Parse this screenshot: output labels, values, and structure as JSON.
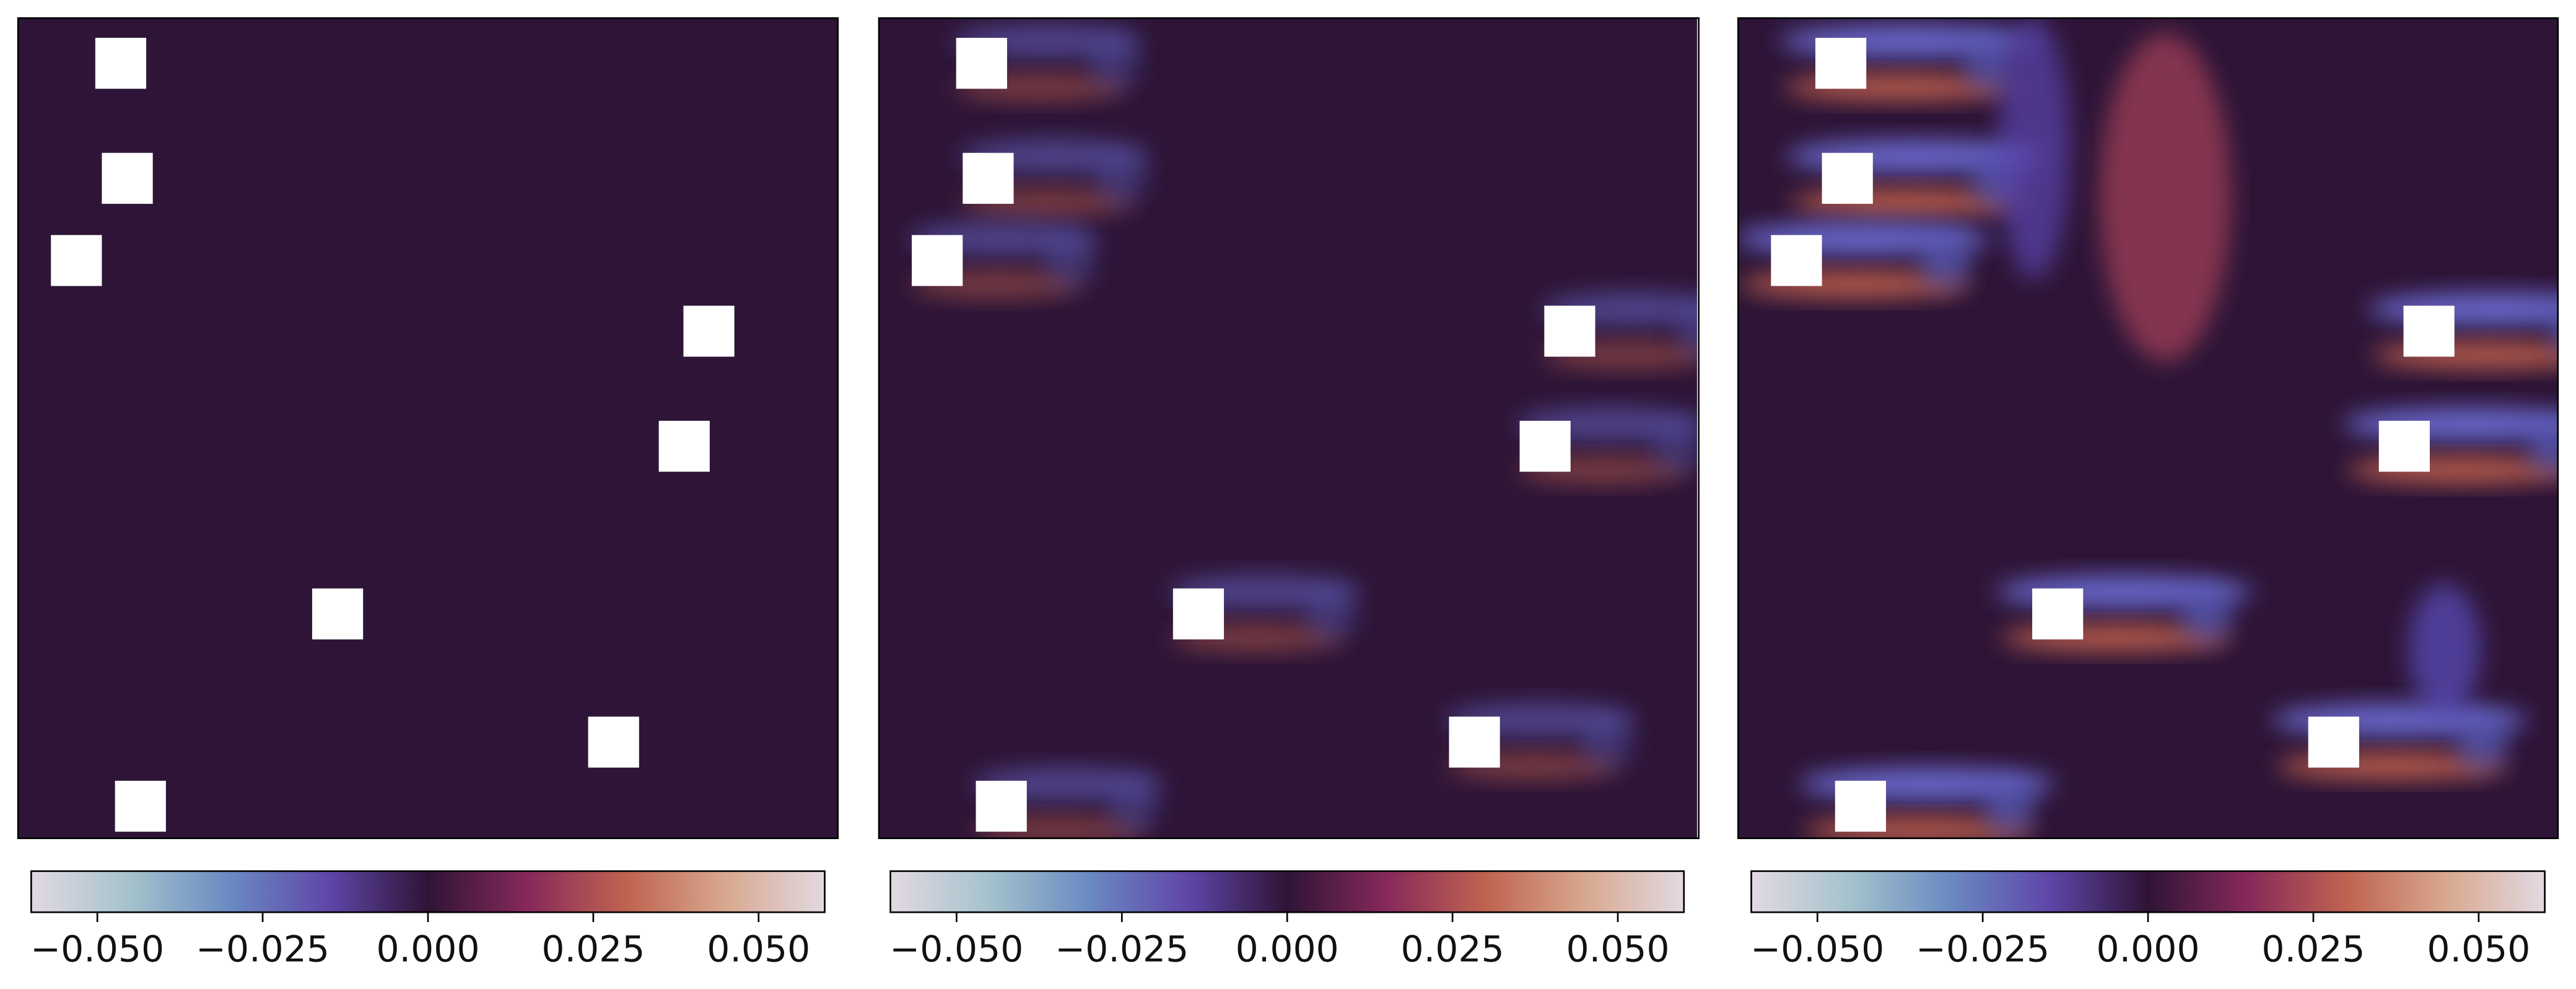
{
  "chart_data": [
    {
      "type": "heatmap",
      "colorbar": {
        "clim": [
          -0.06,
          0.06
        ],
        "ticks": [
          {
            "value": -0.05,
            "label": "−0.050"
          },
          {
            "value": -0.025,
            "label": "−0.025"
          },
          {
            "value": 0,
            "label": "0.000"
          },
          {
            "value": 0.025,
            "label": "0.025"
          },
          {
            "value": 0.05,
            "label": "0.050"
          }
        ]
      }
    },
    {
      "type": "heatmap",
      "colorbar": {
        "clim": [
          -0.06,
          0.06
        ],
        "ticks": [
          {
            "value": -0.05,
            "label": "−0.050"
          },
          {
            "value": -0.025,
            "label": "−0.025"
          },
          {
            "value": 0,
            "label": "0.000"
          },
          {
            "value": 0.025,
            "label": "0.025"
          },
          {
            "value": 0.05,
            "label": "0.050"
          }
        ]
      }
    },
    {
      "type": "heatmap",
      "colorbar": {
        "clim": [
          -0.06,
          0.06
        ],
        "ticks": [
          {
            "value": -0.05,
            "label": "−0.050"
          },
          {
            "value": -0.025,
            "label": "−0.025"
          },
          {
            "value": 0,
            "label": "0.000"
          },
          {
            "value": 0.025,
            "label": "0.025"
          },
          {
            "value": 0.05,
            "label": "0.050"
          }
        ]
      }
    }
  ]
}
